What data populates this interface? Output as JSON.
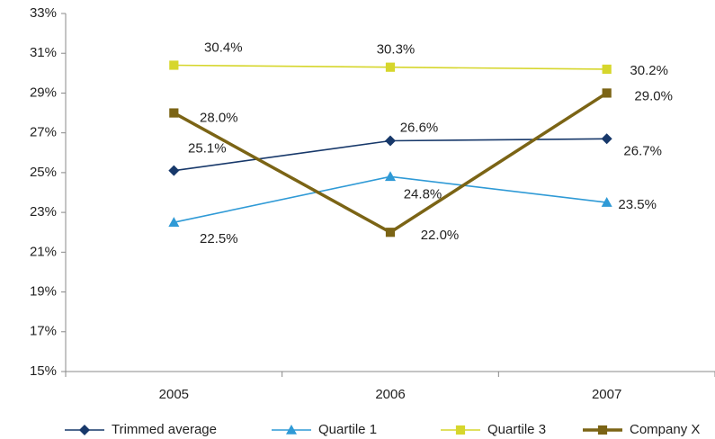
{
  "chart_data": {
    "type": "line",
    "categories": [
      "2005",
      "2006",
      "2007"
    ],
    "series": [
      {
        "name": "Trimmed average",
        "color": "#17386a",
        "marker": "diamond",
        "values": [
          25.1,
          26.6,
          26.7
        ],
        "value_labels": [
          "25.1%",
          "26.6%",
          "26.7%"
        ]
      },
      {
        "name": "Quartile 1",
        "color": "#2f9ad6",
        "marker": "triangle",
        "values": [
          22.5,
          24.8,
          23.5
        ],
        "value_labels": [
          "22.5%",
          "24.8%",
          "23.5%"
        ]
      },
      {
        "name": "Quartile 3",
        "color": "#d6d62c",
        "marker": "square",
        "values": [
          30.4,
          30.3,
          30.2
        ],
        "value_labels": [
          "30.4%",
          "30.3%",
          "30.2%"
        ]
      },
      {
        "name": "Company X",
        "color": "#7b6415",
        "marker": "square",
        "values": [
          28.0,
          22.0,
          29.0
        ],
        "value_labels": [
          "28.0%",
          "22.0%",
          "29.0%"
        ]
      }
    ],
    "ylim": [
      15,
      33
    ],
    "yticks": [
      {
        "value": 15,
        "label": "15%"
      },
      {
        "value": 17,
        "label": "17%"
      },
      {
        "value": 19,
        "label": "19%"
      },
      {
        "value": 21,
        "label": "21%"
      },
      {
        "value": 23,
        "label": "23%"
      },
      {
        "value": 25,
        "label": "25%"
      },
      {
        "value": 27,
        "label": "27%"
      },
      {
        "value": 29,
        "label": "29%"
      },
      {
        "value": 31,
        "label": "31%"
      },
      {
        "value": 33,
        "label": "33%"
      }
    ],
    "legend": "bottom"
  }
}
